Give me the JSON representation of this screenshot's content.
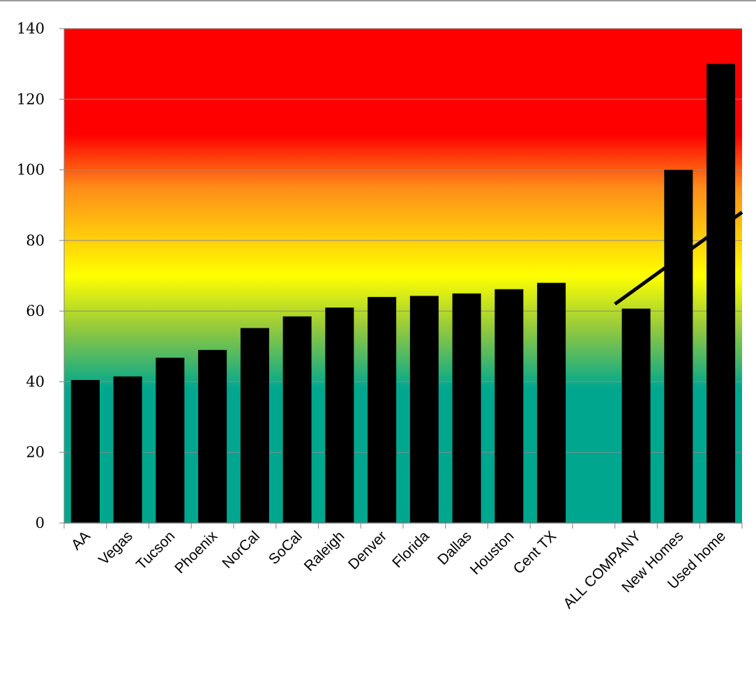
{
  "chart_data": {
    "type": "bar",
    "title": "",
    "xlabel": "",
    "ylabel": "",
    "ylim": [
      0,
      140
    ],
    "yticks": [
      "0",
      "20",
      "40",
      "60",
      "80",
      "100",
      "120",
      "140"
    ],
    "grid": true,
    "legend": "none",
    "categories": [
      "AA",
      "Vegas",
      "Tucson",
      "Phoenix",
      "NorCal",
      "SoCal",
      "Raleigh",
      "Denver",
      "Florida",
      "Dallas",
      "Houston",
      "Cent TX",
      "",
      "ALL COMPANY",
      "New Homes",
      "Used home"
    ],
    "values": [
      40.5,
      41.5,
      46.8,
      49,
      55.2,
      58.5,
      61,
      64,
      64.3,
      65,
      66.2,
      68,
      null,
      60.7,
      100,
      130
    ],
    "bar_color": "#000000",
    "background_gradient": [
      {
        "stop": 0,
        "value": 140,
        "color": "#ff0000"
      },
      {
        "stop": 1,
        "value": 110,
        "color": "#ff0000"
      },
      {
        "stop": 2,
        "value": 95,
        "color": "#ff8c1a"
      },
      {
        "stop": 3,
        "value": 70,
        "color": "#ffff00"
      },
      {
        "stop": 4,
        "value": 55,
        "color": "#92c83e"
      },
      {
        "stop": 5,
        "value": 38,
        "color": "#00a78f"
      },
      {
        "stop": 6,
        "value": 0,
        "color": "#00a78f"
      }
    ],
    "annotation_line": {
      "from": [
        13,
        62
      ],
      "to": [
        16,
        88
      ],
      "color": "#000000"
    }
  }
}
